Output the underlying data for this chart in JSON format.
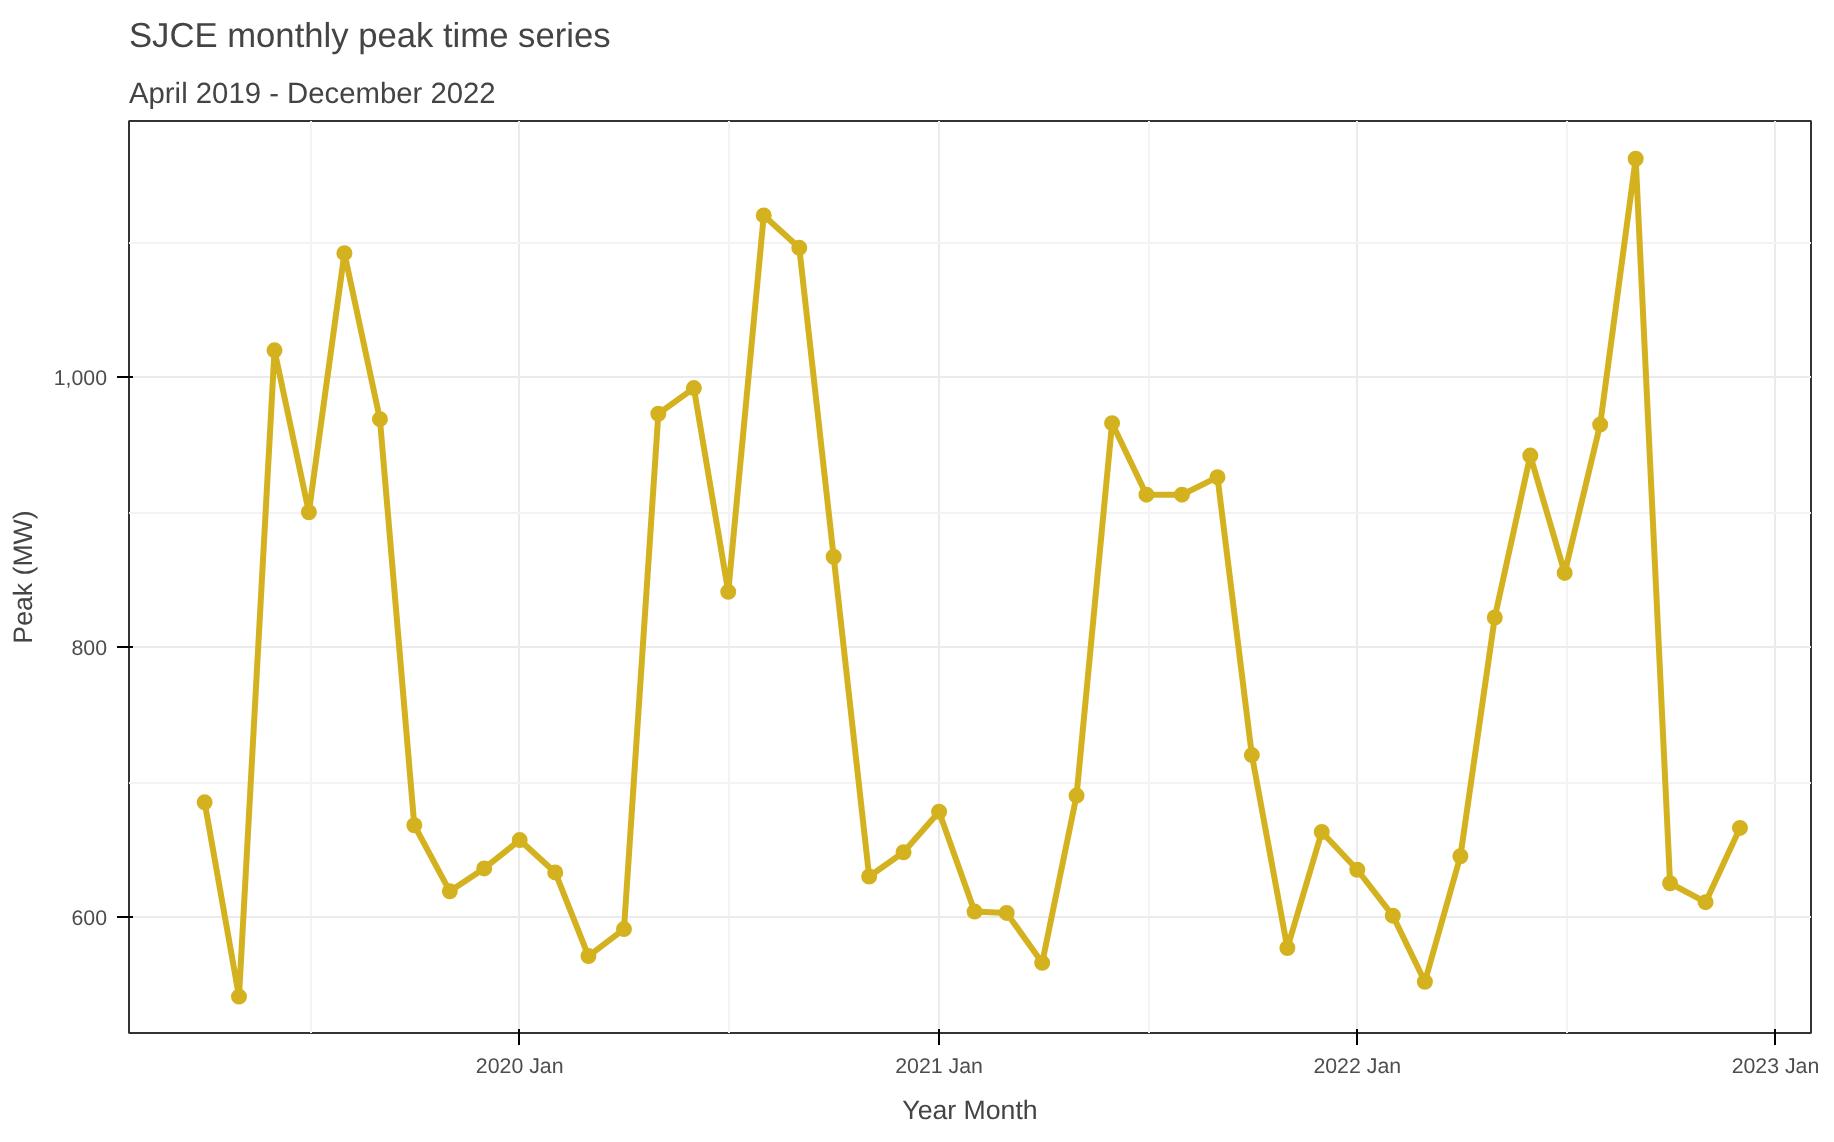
{
  "chart_data": {
    "type": "line",
    "title": "SJCE monthly peak time series",
    "subtitle": "April 2019 - December 2022",
    "xlabel": "Year Month",
    "ylabel": "Peak (MW)",
    "x": [
      "2019-04",
      "2019-05",
      "2019-06",
      "2019-07",
      "2019-08",
      "2019-09",
      "2019-10",
      "2019-11",
      "2019-12",
      "2020-01",
      "2020-02",
      "2020-03",
      "2020-04",
      "2020-05",
      "2020-06",
      "2020-07",
      "2020-08",
      "2020-09",
      "2020-10",
      "2020-11",
      "2020-12",
      "2021-01",
      "2021-02",
      "2021-03",
      "2021-04",
      "2021-05",
      "2021-06",
      "2021-07",
      "2021-08",
      "2021-09",
      "2021-10",
      "2021-11",
      "2021-12",
      "2022-01",
      "2022-02",
      "2022-03",
      "2022-04",
      "2022-05",
      "2022-06",
      "2022-07",
      "2022-08",
      "2022-09",
      "2022-10",
      "2022-11",
      "2022-12"
    ],
    "series": [
      {
        "color": "#d4b21f",
        "values": [
          685,
          541,
          1020,
          900,
          1092,
          969,
          668,
          619,
          636,
          657,
          633,
          571,
          591,
          973,
          992,
          841,
          1120,
          1096,
          867,
          630,
          648,
          678,
          604,
          603,
          566,
          690,
          966,
          913,
          913,
          926,
          720,
          577,
          663,
          635,
          601,
          552,
          645,
          822,
          942,
          855,
          965,
          1162,
          625,
          611,
          666
        ]
      }
    ],
    "xlim": [
      "2019-01-25",
      "2023-02-01"
    ],
    "ylim": [
      514,
      1190
    ],
    "xticks": [
      {
        "value": "2020-01",
        "label": "2020 Jan"
      },
      {
        "value": "2021-01",
        "label": "2021 Jan"
      },
      {
        "value": "2022-01",
        "label": "2022 Jan"
      },
      {
        "value": "2023-01",
        "label": "2023 Jan"
      }
    ],
    "yticks": [
      600,
      800,
      {
        "value": 1000,
        "label": "1,000"
      }
    ],
    "grid": true,
    "marker": "circle",
    "line_style": "solid"
  }
}
